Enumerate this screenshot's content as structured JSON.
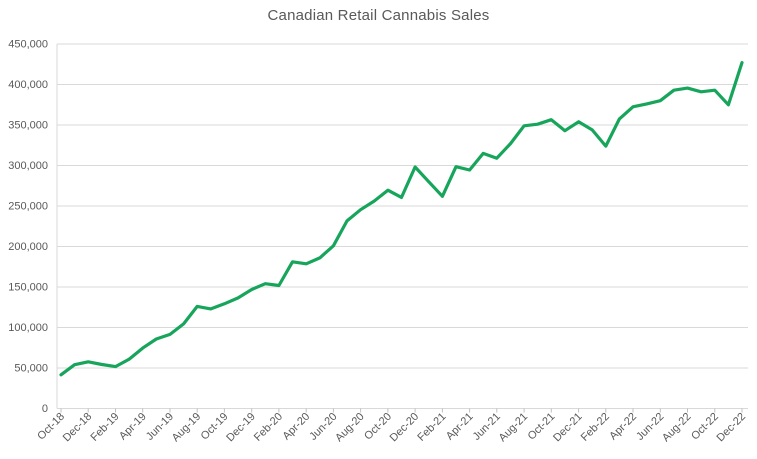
{
  "colors": {
    "line": "#17A55C",
    "grid": "#D9D9D9",
    "axis": "#D9D9D9",
    "tick": "#BFBFBF",
    "label": "#595959",
    "title": "#595959",
    "background": "#FFFFFF"
  },
  "chart_data": {
    "type": "line",
    "title": "Canadian Retail Cannabis Sales",
    "xlabel": "",
    "ylabel": "",
    "ylim": [
      0,
      450000
    ],
    "y_ticks": [
      0,
      50000,
      100000,
      150000,
      200000,
      250000,
      300000,
      350000,
      400000,
      450000
    ],
    "grid": true,
    "legend": false,
    "x_label_every": 2,
    "x": [
      "Oct-18",
      "Nov-18",
      "Dec-18",
      "Jan-19",
      "Feb-19",
      "Mar-19",
      "Apr-19",
      "May-19",
      "Jun-19",
      "Jul-19",
      "Aug-19",
      "Sep-19",
      "Oct-19",
      "Nov-19",
      "Dec-19",
      "Jan-20",
      "Feb-20",
      "Mar-20",
      "Apr-20",
      "May-20",
      "Jun-20",
      "Jul-20",
      "Aug-20",
      "Sep-20",
      "Oct-20",
      "Nov-20",
      "Dec-20",
      "Jan-21",
      "Feb-21",
      "Mar-21",
      "Apr-21",
      "May-21",
      "Jun-21",
      "Jul-21",
      "Aug-21",
      "Sep-21",
      "Oct-21",
      "Nov-21",
      "Dec-21",
      "Jan-22",
      "Feb-22",
      "Mar-22",
      "Apr-22",
      "May-22",
      "Jun-22",
      "Jul-22",
      "Aug-22",
      "Sep-22",
      "Oct-22",
      "Nov-22",
      "Dec-22"
    ],
    "values": [
      41600,
      54100,
      57700,
      54300,
      51700,
      60900,
      74600,
      85800,
      91500,
      104500,
      126000,
      123000,
      129200,
      136600,
      146900,
      154100,
      151900,
      181100,
      178600,
      185900,
      200900,
      231600,
      245400,
      256200,
      269500,
      260600,
      298200,
      280000,
      262000,
      298500,
      294500,
      315000,
      309000,
      327000,
      349000,
      351000,
      356500,
      343000,
      354000,
      344000,
      324000,
      357500,
      372500,
      376000,
      380000,
      393000,
      395500,
      391000,
      393000,
      375000,
      427000
    ],
    "shown_x_labels": [
      "Oct-18",
      "Dec-18",
      "Feb-19",
      "Apr-19",
      "Jun-19",
      "Aug-19",
      "Oct-19",
      "Dec-19",
      "Feb-20",
      "Apr-20",
      "Jun-20",
      "Aug-20",
      "Oct-20",
      "Dec-20",
      "Feb-21",
      "Apr-21",
      "Jun-21",
      "Aug-21",
      "Oct-21",
      "Dec-21",
      "Feb-22",
      "Apr-22",
      "Jun-22",
      "Aug-22",
      "Oct-22",
      "Dec-22"
    ]
  }
}
